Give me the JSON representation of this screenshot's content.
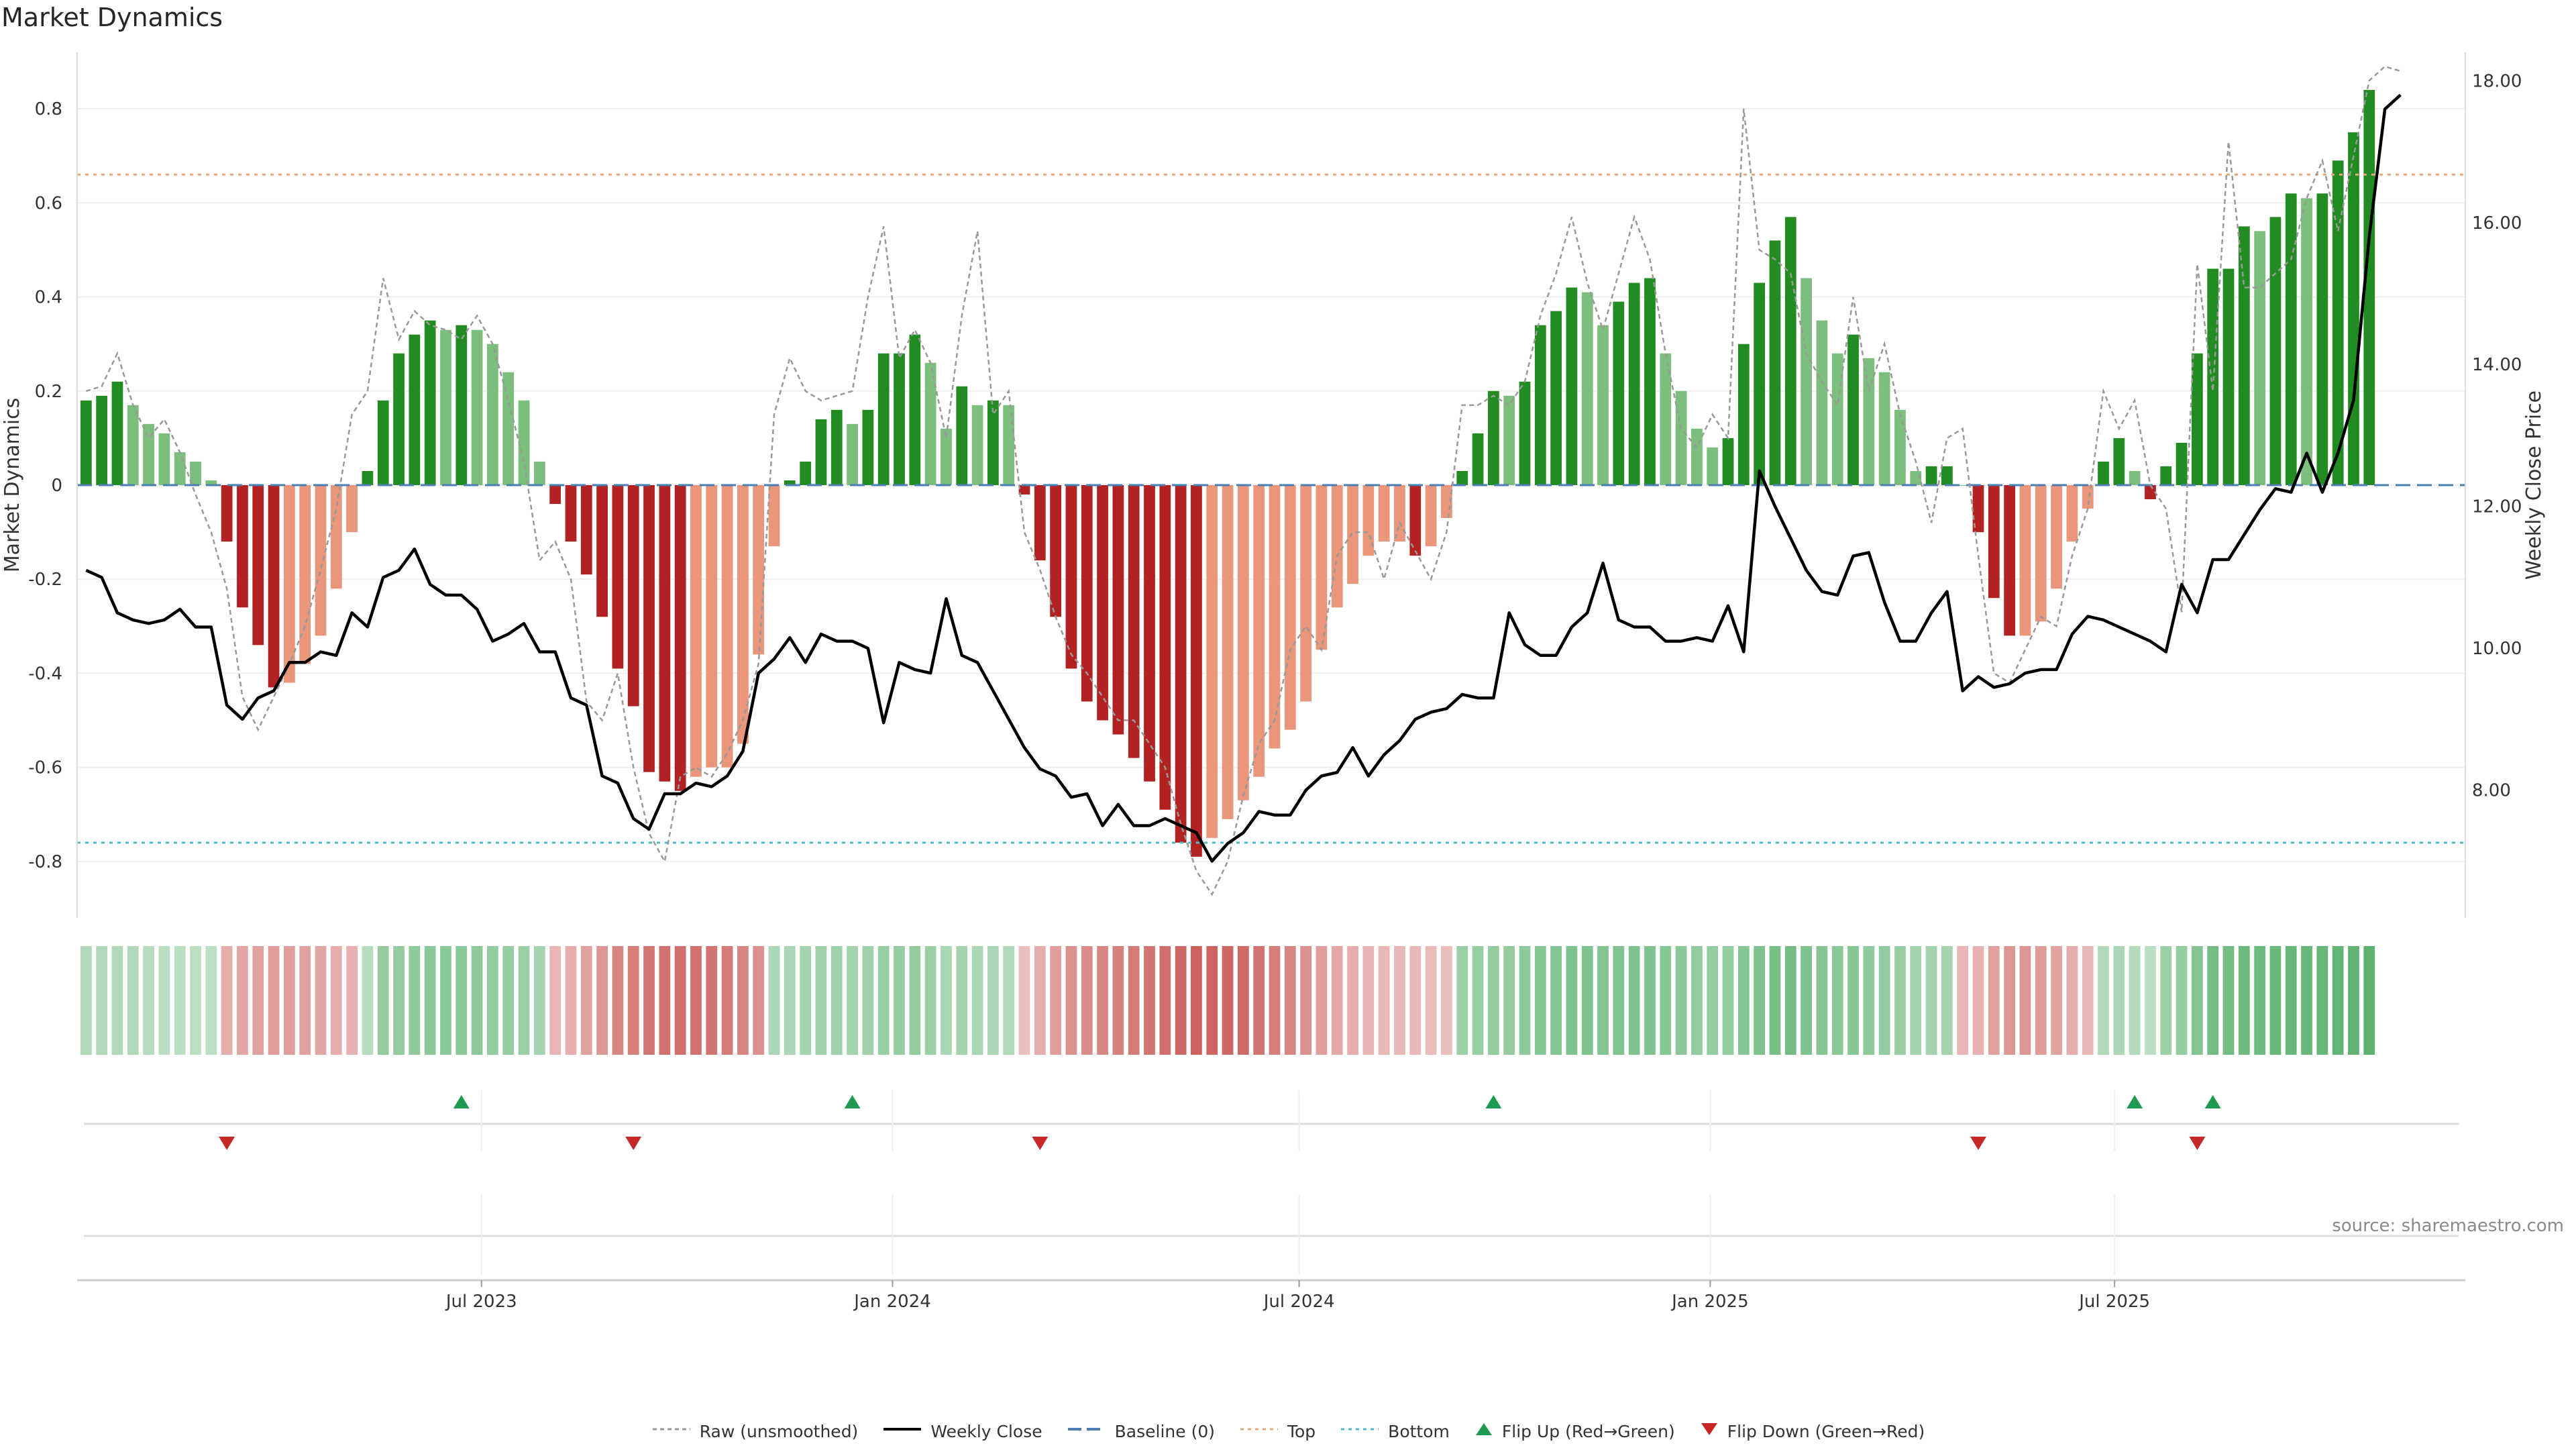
{
  "title": "Market Dynamics",
  "source": "source: sharemaestro.com",
  "colors": {
    "strong_green": "#228b22",
    "light_green": "#7cbf7c",
    "strong_red": "#b22222",
    "light_red": "#e9967a",
    "close_line": "#000000",
    "raw_line": "#999999",
    "baseline": "#4a7fb5",
    "top_line": "#e8a878",
    "bottom_line": "#4fb8c9",
    "flip_up": "#1e9a50",
    "flip_down": "#c62828"
  },
  "legend": [
    {
      "key": "raw",
      "label": "Raw (unsmoothed)"
    },
    {
      "key": "close",
      "label": "Weekly Close"
    },
    {
      "key": "baseline",
      "label": "Baseline (0)"
    },
    {
      "key": "top",
      "label": "Top"
    },
    {
      "key": "bottom",
      "label": "Bottom"
    },
    {
      "key": "flip_up",
      "label": "Flip Up (Red→Green)"
    },
    {
      "key": "flip_down",
      "label": "Flip Down (Green→Red)"
    }
  ],
  "chart_data": {
    "type": "bar",
    "ylabel": "Market Dynamics",
    "y2label": "Weekly Close Price",
    "ylim": [
      -0.92,
      0.92
    ],
    "y2lim": [
      6.2,
      18.4
    ],
    "yticks": [
      -0.8,
      -0.6,
      -0.4,
      -0.2,
      0,
      0.2,
      0.4,
      0.6,
      0.8
    ],
    "y2ticks": [
      "8.00",
      "10.00",
      "12.00",
      "14.00",
      "16.00",
      "18.00"
    ],
    "x_start": "2023-01-01",
    "x_end": "2025-12-05",
    "x_ticks": [
      {
        "date": "2023-07-01",
        "label": "Jul 2023"
      },
      {
        "date": "2024-01-01",
        "label": "Jan 2024"
      },
      {
        "date": "2024-07-01",
        "label": "Jul 2024"
      },
      {
        "date": "2025-01-01",
        "label": "Jan 2025"
      },
      {
        "date": "2025-07-01",
        "label": "Jul 2025"
      }
    ],
    "top_level": 0.66,
    "bottom_level": -0.76,
    "baseline": 0,
    "weeks": [
      "2023-01-05",
      "2023-01-12",
      "2023-01-19",
      "2023-01-26",
      "2023-02-02",
      "2023-02-09",
      "2023-02-16",
      "2023-02-23",
      "2023-03-02",
      "2023-03-09",
      "2023-03-16",
      "2023-03-23",
      "2023-03-30",
      "2023-04-06",
      "2023-04-13",
      "2023-04-20",
      "2023-04-27",
      "2023-05-04",
      "2023-05-11",
      "2023-05-18",
      "2023-05-25",
      "2023-06-01",
      "2023-06-08",
      "2023-06-15",
      "2023-06-22",
      "2023-06-29",
      "2023-07-06",
      "2023-07-13",
      "2023-07-20",
      "2023-07-27",
      "2023-08-03",
      "2023-08-10",
      "2023-08-17",
      "2023-08-24",
      "2023-08-31",
      "2023-09-07",
      "2023-09-14",
      "2023-09-21",
      "2023-09-28",
      "2023-10-05",
      "2023-10-12",
      "2023-10-19",
      "2023-10-26",
      "2023-11-02",
      "2023-11-09",
      "2023-11-16",
      "2023-11-23",
      "2023-11-30",
      "2023-12-07",
      "2023-12-14",
      "2023-12-21",
      "2023-12-28",
      "2024-01-04",
      "2024-01-11",
      "2024-01-18",
      "2024-01-25",
      "2024-02-01",
      "2024-02-08",
      "2024-02-15",
      "2024-02-22",
      "2024-02-29",
      "2024-03-07",
      "2024-03-14",
      "2024-03-21",
      "2024-03-28",
      "2024-04-04",
      "2024-04-11",
      "2024-04-18",
      "2024-04-25",
      "2024-05-02",
      "2024-05-09",
      "2024-05-16",
      "2024-05-23",
      "2024-05-30",
      "2024-06-06",
      "2024-06-13",
      "2024-06-20",
      "2024-06-27",
      "2024-07-04",
      "2024-07-11",
      "2024-07-18",
      "2024-07-25",
      "2024-08-01",
      "2024-08-08",
      "2024-08-15",
      "2024-08-22",
      "2024-08-29",
      "2024-09-05",
      "2024-09-12",
      "2024-09-19",
      "2024-09-26",
      "2024-10-03",
      "2024-10-10",
      "2024-10-17",
      "2024-10-24",
      "2024-10-31",
      "2024-11-07",
      "2024-11-14",
      "2024-11-21",
      "2024-11-28",
      "2024-12-05",
      "2024-12-12",
      "2024-12-19",
      "2024-12-26",
      "2025-01-02",
      "2025-01-09",
      "2025-01-16",
      "2025-01-23",
      "2025-01-30",
      "2025-02-06",
      "2025-02-13",
      "2025-02-20",
      "2025-02-27",
      "2025-03-06",
      "2025-03-13",
      "2025-03-20",
      "2025-03-27",
      "2025-04-03",
      "2025-04-10",
      "2025-04-17",
      "2025-04-24",
      "2025-05-01",
      "2025-05-08",
      "2025-05-15",
      "2025-05-22",
      "2025-05-29",
      "2025-06-05",
      "2025-06-12",
      "2025-06-19",
      "2025-06-26",
      "2025-07-03",
      "2025-07-10",
      "2025-07-17",
      "2025-07-24",
      "2025-07-31",
      "2025-08-07",
      "2025-08-14",
      "2025-08-21",
      "2025-08-28",
      "2025-09-04",
      "2025-09-11",
      "2025-09-18",
      "2025-09-25",
      "2025-10-02",
      "2025-10-09",
      "2025-10-16",
      "2025-10-23",
      "2025-10-30",
      "2025-11-06",
      "2025-11-13",
      "2025-11-20",
      "2025-11-27",
      "2025-12-04"
    ],
    "smoothed": [
      0.18,
      0.19,
      0.22,
      0.17,
      0.13,
      0.11,
      0.07,
      0.05,
      0.01,
      -0.12,
      -0.26,
      -0.34,
      -0.43,
      -0.42,
      -0.38,
      -0.32,
      -0.22,
      -0.1,
      0.03,
      0.18,
      0.28,
      0.32,
      0.35,
      0.33,
      0.34,
      0.33,
      0.3,
      0.24,
      0.18,
      0.05,
      -0.04,
      -0.12,
      -0.19,
      -0.28,
      -0.39,
      -0.47,
      -0.61,
      -0.63,
      -0.65,
      -0.62,
      -0.6,
      -0.6,
      -0.55,
      -0.36,
      -0.13,
      0.01,
      0.05,
      0.14,
      0.16,
      0.13,
      0.16,
      0.28,
      0.28,
      0.32,
      0.26,
      0.12,
      0.21,
      0.17,
      0.18,
      0.17,
      -0.02,
      -0.16,
      -0.28,
      -0.39,
      -0.46,
      -0.5,
      -0.53,
      -0.58,
      -0.63,
      -0.69,
      -0.76,
      -0.79,
      -0.75,
      -0.71,
      -0.67,
      -0.62,
      -0.56,
      -0.52,
      -0.46,
      -0.35,
      -0.26,
      -0.21,
      -0.15,
      -0.12,
      -0.12,
      -0.15,
      -0.13,
      -0.07,
      0.03,
      0.11,
      0.2,
      0.19,
      0.22,
      0.34,
      0.37,
      0.42,
      0.41,
      0.34,
      0.39,
      0.43,
      0.44,
      0.28,
      0.2,
      0.12,
      0.08,
      0.1,
      0.3,
      0.43,
      0.52,
      0.57,
      0.44,
      0.35,
      0.28,
      0.32,
      0.27,
      0.24,
      0.16,
      0.03,
      0.04,
      0.04,
      0.0,
      -0.1,
      -0.24,
      -0.32,
      -0.32,
      -0.29,
      -0.22,
      -0.12,
      -0.05,
      0.05,
      0.1,
      0.03,
      -0.03,
      0.04,
      0.09,
      0.28,
      0.46,
      0.46,
      0.55,
      0.54,
      0.57,
      0.62,
      0.61,
      0.62,
      0.69,
      0.75,
      0.84
    ],
    "raw": [
      0.2,
      0.21,
      0.28,
      0.17,
      0.1,
      0.14,
      0.07,
      -0.02,
      -0.1,
      -0.22,
      -0.45,
      -0.52,
      -0.45,
      -0.38,
      -0.3,
      -0.18,
      -0.05,
      0.15,
      0.2,
      0.44,
      0.31,
      0.37,
      0.34,
      0.33,
      0.31,
      0.36,
      0.3,
      0.18,
      0.05,
      -0.16,
      -0.12,
      -0.2,
      -0.46,
      -0.5,
      -0.4,
      -0.6,
      -0.74,
      -0.8,
      -0.62,
      -0.6,
      -0.62,
      -0.57,
      -0.5,
      -0.38,
      0.15,
      0.27,
      0.2,
      0.18,
      0.19,
      0.2,
      0.4,
      0.55,
      0.27,
      0.33,
      0.26,
      0.1,
      0.36,
      0.54,
      0.15,
      0.2,
      -0.1,
      -0.18,
      -0.28,
      -0.36,
      -0.4,
      -0.45,
      -0.5,
      -0.5,
      -0.55,
      -0.6,
      -0.72,
      -0.82,
      -0.87,
      -0.8,
      -0.66,
      -0.55,
      -0.5,
      -0.35,
      -0.3,
      -0.35,
      -0.15,
      -0.1,
      -0.1,
      -0.2,
      -0.08,
      -0.14,
      -0.2,
      -0.1,
      0.17,
      0.17,
      0.19,
      0.17,
      0.22,
      0.36,
      0.45,
      0.57,
      0.43,
      0.33,
      0.45,
      0.57,
      0.48,
      0.28,
      0.12,
      0.08,
      0.15,
      0.1,
      0.8,
      0.5,
      0.48,
      0.45,
      0.28,
      0.22,
      0.17,
      0.4,
      0.2,
      0.3,
      0.15,
      0.05,
      -0.08,
      0.1,
      0.12,
      -0.15,
      -0.4,
      -0.42,
      -0.35,
      -0.28,
      -0.3,
      -0.15,
      -0.05,
      0.2,
      0.12,
      0.18,
      0.0,
      -0.05,
      -0.27,
      0.47,
      0.2,
      0.73,
      0.42,
      0.42,
      0.45,
      0.48,
      0.61,
      0.69,
      0.54,
      0.7,
      0.86,
      0.89,
      0.88
    ],
    "weekly_close": [
      11.1,
      11.0,
      10.5,
      10.4,
      10.35,
      10.4,
      10.55,
      10.3,
      10.3,
      9.2,
      9.0,
      9.3,
      9.4,
      9.8,
      9.8,
      9.95,
      9.9,
      10.5,
      10.3,
      11.0,
      11.1,
      11.4,
      10.9,
      10.75,
      10.75,
      10.55,
      10.1,
      10.2,
      10.35,
      9.95,
      9.95,
      9.3,
      9.2,
      8.2,
      8.1,
      7.6,
      7.45,
      7.95,
      7.95,
      8.1,
      8.05,
      8.2,
      8.55,
      9.65,
      9.85,
      10.15,
      9.8,
      10.2,
      10.1,
      10.1,
      10.0,
      8.95,
      9.8,
      9.7,
      9.65,
      10.7,
      9.9,
      9.8,
      9.4,
      9.0,
      8.6,
      8.3,
      8.2,
      7.9,
      7.95,
      7.5,
      7.8,
      7.5,
      7.5,
      7.6,
      7.5,
      7.4,
      7.0,
      7.25,
      7.4,
      7.7,
      7.65,
      7.65,
      8.0,
      8.2,
      8.25,
      8.6,
      8.2,
      8.5,
      8.7,
      9.0,
      9.1,
      9.15,
      9.35,
      9.3,
      9.3,
      10.5,
      10.05,
      9.9,
      9.9,
      10.3,
      10.5,
      11.2,
      10.4,
      10.3,
      10.3,
      10.1,
      10.1,
      10.15,
      10.1,
      10.6,
      9.95,
      12.5,
      12.0,
      11.55,
      11.1,
      10.8,
      10.75,
      11.3,
      11.35,
      10.65,
      10.1,
      10.1,
      10.5,
      10.8,
      9.4,
      9.6,
      9.45,
      9.5,
      9.65,
      9.7,
      9.7,
      10.2,
      10.45,
      10.4,
      10.3,
      10.2,
      10.1,
      9.95,
      10.9,
      10.5,
      11.25,
      11.25,
      11.6,
      11.95,
      12.25,
      12.2,
      12.75,
      12.2,
      12.75,
      13.5,
      15.8,
      17.6,
      17.8
    ],
    "regime_strength": [
      0.28,
      0.28,
      0.28,
      0.28,
      0.24,
      0.22,
      0.22,
      0.2,
      0.2,
      -0.3,
      -0.35,
      -0.38,
      -0.4,
      -0.4,
      -0.38,
      -0.35,
      -0.3,
      -0.28,
      0.24,
      0.45,
      0.45,
      0.48,
      0.5,
      0.5,
      0.5,
      0.48,
      0.46,
      0.44,
      0.4,
      0.35,
      -0.25,
      -0.3,
      -0.38,
      -0.45,
      -0.55,
      -0.6,
      -0.65,
      -0.68,
      -0.7,
      -0.68,
      -0.66,
      -0.62,
      -0.55,
      -0.48,
      0.3,
      0.3,
      0.35,
      0.38,
      0.38,
      0.36,
      0.38,
      0.42,
      0.44,
      0.45,
      0.4,
      0.32,
      0.35,
      0.32,
      0.3,
      0.28,
      -0.2,
      -0.3,
      -0.4,
      -0.48,
      -0.52,
      -0.55,
      -0.58,
      -0.62,
      -0.66,
      -0.7,
      -0.74,
      -0.78,
      -0.76,
      -0.74,
      -0.72,
      -0.66,
      -0.6,
      -0.55,
      -0.48,
      -0.4,
      -0.34,
      -0.3,
      -0.26,
      -0.24,
      -0.24,
      -0.24,
      -0.22,
      -0.2,
      0.4,
      0.42,
      0.45,
      0.45,
      0.48,
      0.52,
      0.55,
      0.58,
      0.58,
      0.55,
      0.56,
      0.58,
      0.58,
      0.52,
      0.5,
      0.46,
      0.44,
      0.44,
      0.52,
      0.58,
      0.62,
      0.64,
      0.58,
      0.54,
      0.5,
      0.52,
      0.48,
      0.46,
      0.42,
      0.36,
      0.36,
      0.35,
      -0.25,
      -0.28,
      -0.38,
      -0.45,
      -0.45,
      -0.42,
      -0.38,
      -0.3,
      -0.24,
      0.28,
      0.3,
      0.26,
      0.22,
      0.4,
      0.44,
      0.55,
      0.64,
      0.64,
      0.68,
      0.68,
      0.7,
      0.72,
      0.72,
      0.72,
      0.74,
      0.76,
      0.78
    ],
    "flip_up": [
      "2023-06-22",
      "2023-12-14",
      "2024-09-26",
      "2025-07-10",
      "2025-08-14"
    ],
    "flip_down": [
      "2023-03-09",
      "2023-09-07",
      "2024-03-07",
      "2025-05-01",
      "2025-08-07"
    ]
  }
}
